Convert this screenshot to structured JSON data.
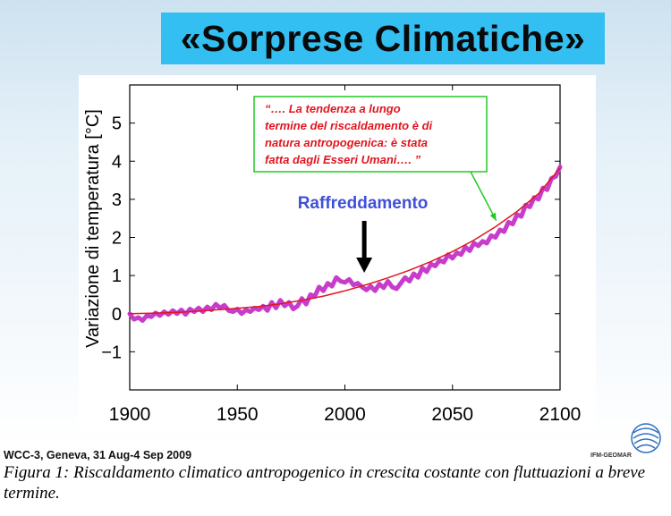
{
  "slide": {
    "title": "«Sorprese Climatiche»",
    "source_note": "WCC-3, Geneva, 31 Aug-4 Sep 2009",
    "logo_text": "IFM-GEOMAR"
  },
  "caption": "Figura 1: Riscaldamento climatico antropogenico in crescita costante con fluttuazioni a breve termine.",
  "chart_data": {
    "type": "line",
    "title": "",
    "xlabel": "",
    "ylabel": "Variazione di temperatura [°C]",
    "xlim": [
      1900,
      2100
    ],
    "ylim": [
      -2,
      6
    ],
    "xticks": [
      1900,
      1950,
      2000,
      2050,
      2100
    ],
    "yticks": [
      -1,
      0,
      1,
      2,
      3,
      4,
      5
    ],
    "ytick_labels": [
      "−1",
      "0",
      "1",
      "2",
      "3",
      "4",
      "5"
    ],
    "grid": false,
    "series": [
      {
        "color": "#c83ccc",
        "x": [
          1900,
          1902,
          1904,
          1906,
          1908,
          1910,
          1912,
          1914,
          1916,
          1918,
          1920,
          1922,
          1924,
          1926,
          1928,
          1930,
          1932,
          1934,
          1936,
          1938,
          1940,
          1942,
          1944,
          1946,
          1948,
          1950,
          1952,
          1954,
          1956,
          1958,
          1960,
          1962,
          1964,
          1966,
          1968,
          1970,
          1972,
          1974,
          1976,
          1978,
          1980,
          1982,
          1984,
          1986,
          1988,
          1990,
          1992,
          1994,
          1996,
          1998,
          2000,
          2002,
          2004,
          2006,
          2008,
          2010,
          2012,
          2014,
          2016,
          2018,
          2020,
          2022,
          2024,
          2026,
          2028,
          2030,
          2032,
          2034,
          2036,
          2038,
          2040,
          2042,
          2044,
          2046,
          2048,
          2050,
          2052,
          2054,
          2056,
          2058,
          2060,
          2062,
          2064,
          2066,
          2068,
          2070,
          2072,
          2074,
          2076,
          2078,
          2080,
          2082,
          2084,
          2086,
          2088,
          2090,
          2092,
          2094,
          2096,
          2098,
          2100
        ],
        "y": [
          0.0,
          -0.15,
          -0.1,
          -0.18,
          -0.05,
          -0.08,
          0.02,
          -0.05,
          0.05,
          -0.02,
          0.08,
          0.0,
          0.1,
          -0.02,
          0.12,
          0.05,
          0.15,
          0.05,
          0.18,
          0.1,
          0.25,
          0.15,
          0.22,
          0.08,
          0.05,
          0.12,
          0.0,
          0.1,
          0.05,
          0.15,
          0.1,
          0.2,
          0.08,
          0.3,
          0.15,
          0.35,
          0.2,
          0.3,
          0.12,
          0.2,
          0.4,
          0.25,
          0.5,
          0.45,
          0.7,
          0.6,
          0.8,
          0.72,
          0.95,
          0.85,
          0.82,
          0.9,
          0.75,
          0.8,
          0.7,
          0.62,
          0.72,
          0.6,
          0.78,
          0.68,
          0.85,
          0.7,
          0.65,
          0.8,
          0.95,
          0.85,
          1.05,
          0.95,
          1.2,
          1.1,
          1.3,
          1.25,
          1.4,
          1.35,
          1.55,
          1.45,
          1.6,
          1.55,
          1.75,
          1.65,
          1.85,
          1.78,
          1.9,
          1.85,
          2.05,
          2.0,
          2.2,
          2.15,
          2.4,
          2.35,
          2.6,
          2.55,
          2.85,
          2.8,
          3.05,
          3.0,
          3.3,
          3.25,
          3.55,
          3.6,
          3.85
        ]
      },
      {
        "color": "#e0161e",
        "x": [
          1900,
          1910,
          1920,
          1930,
          1940,
          1950,
          1960,
          1970,
          1980,
          1990,
          2000,
          2010,
          2020,
          2030,
          2040,
          2050,
          2060,
          2070,
          2080,
          2090,
          2100
        ],
        "y": [
          0.0,
          0.01,
          0.03,
          0.06,
          0.1,
          0.14,
          0.19,
          0.26,
          0.35,
          0.46,
          0.6,
          0.76,
          0.94,
          1.14,
          1.37,
          1.63,
          1.93,
          2.28,
          2.68,
          3.15,
          3.82
        ]
      }
    ],
    "annotations": [
      {
        "text": "Raffreddamento",
        "x": 2009,
        "y": 3.0,
        "color": "#4050d8"
      },
      {
        "text": "“…. La tendenza a lungo termine del riscaldamento è di natura antropogenica: è stata fatta dagli Esseri Umani….”",
        "color": "#e0161e",
        "border_color": "#22c822",
        "points_to": [
          2072,
          2.3
        ]
      }
    ],
    "annotation_lines": [
      "“…. La tendenza a lungo",
      "termine del riscaldamento è di",
      "natura antropogenica: è stata",
      "fatta dagli Esseri Umani…. ”"
    ]
  }
}
